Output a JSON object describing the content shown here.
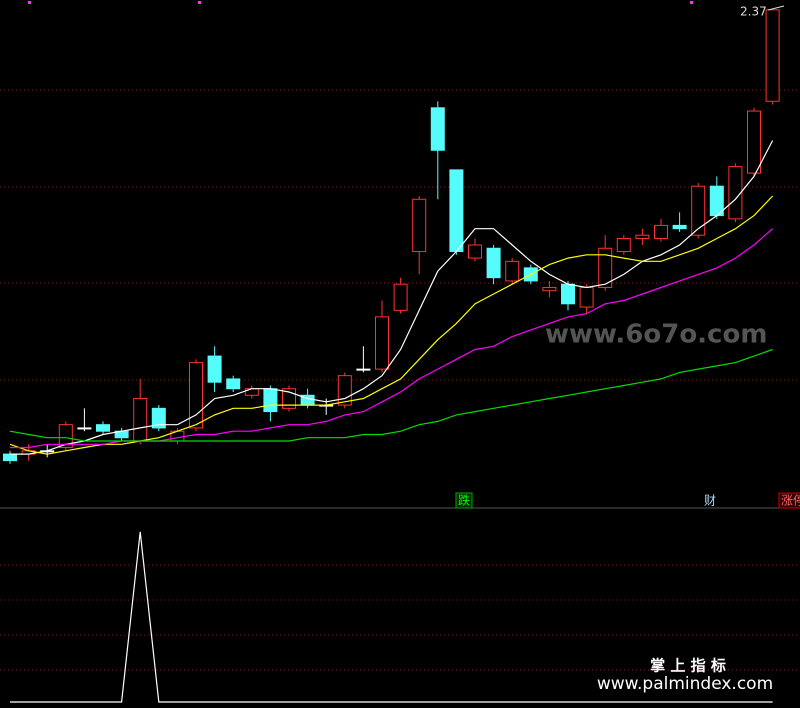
{
  "chart_data": [
    {
      "type": "candlestick",
      "high_label": "2.37",
      "ylim": [
        0.9,
        2.4
      ],
      "up_color": "#ff3232",
      "down_color": "#54fcfc",
      "flat_color": "#ffffff",
      "open": [
        1.01,
        1.01,
        1.02,
        1.03,
        1.09,
        1.1,
        1.08,
        1.05,
        1.15,
        1.05,
        1.09,
        1.31,
        1.24,
        1.19,
        1.21,
        1.15,
        1.19,
        1.16,
        1.16,
        1.27,
        1.27,
        1.45,
        1.63,
        2.07,
        1.88,
        1.61,
        1.64,
        1.54,
        1.58,
        1.51,
        1.53,
        1.46,
        1.52,
        1.63,
        1.67,
        1.67,
        1.71,
        1.68,
        1.83,
        1.73,
        1.87,
        2.09
      ],
      "high": [
        1.02,
        1.04,
        1.04,
        1.11,
        1.15,
        1.11,
        1.09,
        1.24,
        1.16,
        1.09,
        1.3,
        1.34,
        1.25,
        1.22,
        1.22,
        1.22,
        1.21,
        1.18,
        1.26,
        1.34,
        1.48,
        1.55,
        1.8,
        2.09,
        1.88,
        1.67,
        1.65,
        1.61,
        1.59,
        1.54,
        1.54,
        1.53,
        1.68,
        1.68,
        1.7,
        1.73,
        1.75,
        1.84,
        1.86,
        1.9,
        2.07,
        2.37
      ],
      "low": [
        0.98,
        0.99,
        1.0,
        1.02,
        1.08,
        1.07,
        1.05,
        1.04,
        1.08,
        1.04,
        1.08,
        1.2,
        1.2,
        1.18,
        1.11,
        1.14,
        1.15,
        1.13,
        1.15,
        1.26,
        1.26,
        1.44,
        1.56,
        1.79,
        1.62,
        1.6,
        1.53,
        1.53,
        1.53,
        1.49,
        1.45,
        1.44,
        1.51,
        1.62,
        1.65,
        1.66,
        1.69,
        1.67,
        1.73,
        1.72,
        1.86,
        2.08
      ],
      "close": [
        0.99,
        1.02,
        1.02,
        1.1,
        1.09,
        1.08,
        1.06,
        1.18,
        1.09,
        1.08,
        1.29,
        1.23,
        1.21,
        1.21,
        1.14,
        1.21,
        1.16,
        1.16,
        1.25,
        1.27,
        1.43,
        1.53,
        1.79,
        1.94,
        1.63,
        1.65,
        1.55,
        1.6,
        1.54,
        1.52,
        1.47,
        1.52,
        1.64,
        1.67,
        1.68,
        1.71,
        1.7,
        1.83,
        1.74,
        1.89,
        2.06,
        2.37
      ],
      "series": [
        {
          "color": "#ffffff",
          "values": [
            1.01,
            1.01,
            1.02,
            1.04,
            1.05,
            1.07,
            1.08,
            1.09,
            1.1,
            1.1,
            1.13,
            1.18,
            1.19,
            1.21,
            1.21,
            1.2,
            1.18,
            1.17,
            1.18,
            1.21,
            1.25,
            1.33,
            1.45,
            1.57,
            1.63,
            1.7,
            1.7,
            1.65,
            1.6,
            1.56,
            1.53,
            1.52,
            1.53,
            1.56,
            1.6,
            1.62,
            1.65,
            1.7,
            1.74,
            1.79,
            1.86,
            1.97
          ]
        },
        {
          "color": "#ffff00",
          "values": [
            1.04,
            1.02,
            1.01,
            1.02,
            1.03,
            1.04,
            1.04,
            1.05,
            1.06,
            1.08,
            1.1,
            1.13,
            1.15,
            1.15,
            1.16,
            1.16,
            1.16,
            1.16,
            1.17,
            1.18,
            1.21,
            1.24,
            1.3,
            1.36,
            1.41,
            1.47,
            1.5,
            1.53,
            1.56,
            1.59,
            1.61,
            1.62,
            1.62,
            1.61,
            1.6,
            1.6,
            1.62,
            1.64,
            1.67,
            1.7,
            1.74,
            1.8
          ]
        },
        {
          "color": "#ff00ff",
          "values": [
            1.03,
            1.03,
            1.04,
            1.04,
            1.04,
            1.04,
            1.05,
            1.05,
            1.05,
            1.06,
            1.07,
            1.07,
            1.08,
            1.08,
            1.09,
            1.1,
            1.1,
            1.11,
            1.13,
            1.14,
            1.17,
            1.2,
            1.24,
            1.27,
            1.3,
            1.33,
            1.34,
            1.37,
            1.39,
            1.41,
            1.43,
            1.44,
            1.47,
            1.48,
            1.5,
            1.52,
            1.54,
            1.56,
            1.58,
            1.61,
            1.65,
            1.7
          ]
        },
        {
          "color": "#00dd00",
          "values": [
            1.08,
            1.07,
            1.06,
            1.06,
            1.05,
            1.05,
            1.05,
            1.05,
            1.05,
            1.05,
            1.05,
            1.05,
            1.05,
            1.05,
            1.05,
            1.05,
            1.06,
            1.06,
            1.06,
            1.07,
            1.07,
            1.08,
            1.1,
            1.11,
            1.13,
            1.14,
            1.15,
            1.16,
            1.17,
            1.18,
            1.19,
            1.2,
            1.21,
            1.22,
            1.23,
            1.24,
            1.26,
            1.27,
            1.28,
            1.29,
            1.31,
            1.33
          ]
        }
      ],
      "markers": [
        "跌",
        "财",
        "涨停"
      ],
      "watermark": "www.6o7o.com"
    },
    {
      "type": "line",
      "ylim": [
        0,
        1.04
      ],
      "color": "#ffffff",
      "values": [
        0,
        0,
        0,
        0,
        0,
        0,
        0,
        1,
        0,
        0,
        0,
        0,
        0,
        0,
        0,
        0,
        0,
        0,
        0,
        0,
        0,
        0,
        0,
        0,
        0,
        0,
        0,
        0,
        0,
        0,
        0,
        0,
        0,
        0,
        0,
        0,
        0,
        0,
        0,
        0,
        0,
        0
      ],
      "brand": "掌 上 指 标",
      "site": "www.palmindex.com"
    }
  ]
}
